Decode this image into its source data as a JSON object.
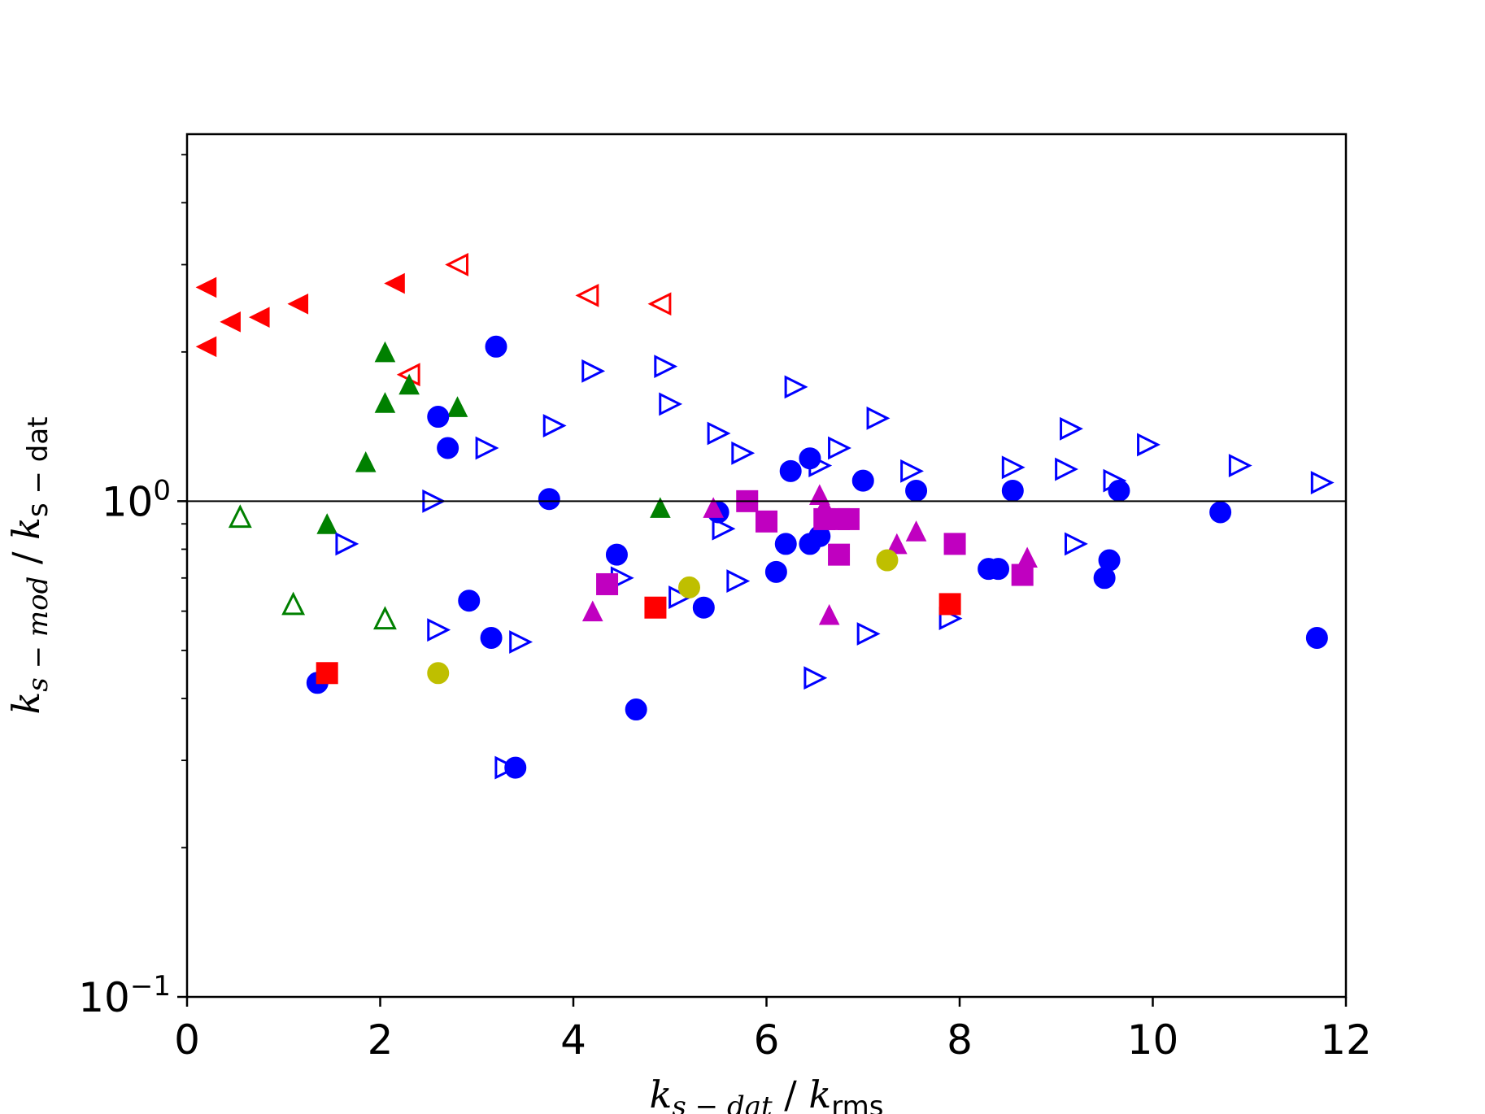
{
  "chart_data": {
    "type": "scatter",
    "title": "",
    "xlabel": {
      "parts": [
        {
          "text": "k",
          "style": "italic"
        },
        {
          "text": "s − dat",
          "style": "italic-sub"
        },
        {
          "text": " / ",
          "style": "normal"
        },
        {
          "text": "k",
          "style": "italic"
        },
        {
          "text": "rms",
          "style": "sub"
        }
      ]
    },
    "ylabel": {
      "parts": [
        {
          "text": "k",
          "style": "italic"
        },
        {
          "text": "s − mod",
          "style": "italic-sub"
        },
        {
          "text": " / ",
          "style": "normal"
        },
        {
          "text": "k",
          "style": "italic"
        },
        {
          "text": "s − dat",
          "style": "sub"
        }
      ]
    },
    "xlim": [
      0,
      12
    ],
    "ylim": [
      0.1,
      5.5
    ],
    "yscale": "log",
    "xticks": [
      {
        "value": 0,
        "label": "0"
      },
      {
        "value": 2,
        "label": "2"
      },
      {
        "value": 4,
        "label": "4"
      },
      {
        "value": 6,
        "label": "6"
      },
      {
        "value": 8,
        "label": "8"
      },
      {
        "value": 10,
        "label": "10"
      },
      {
        "value": 12,
        "label": "12"
      }
    ],
    "yticks": [
      {
        "value": 0.1,
        "base": "10",
        "exp": "−1"
      },
      {
        "value": 1,
        "base": "10",
        "exp": "0"
      }
    ],
    "reference_line": {
      "y": 1,
      "color": "#000000"
    },
    "grid": false,
    "legend": "none",
    "series": [
      {
        "marker": "triangle-left",
        "filled": true,
        "color": "#ff0000",
        "points": [
          [
            0.2,
            2.7
          ],
          [
            0.2,
            2.05
          ],
          [
            0.45,
            2.3
          ],
          [
            0.75,
            2.35
          ],
          [
            1.15,
            2.5
          ],
          [
            2.15,
            2.75
          ]
        ]
      },
      {
        "marker": "triangle-left",
        "filled": false,
        "color": "#ff0000",
        "points": [
          [
            2.8,
            3.0
          ],
          [
            4.15,
            2.6
          ],
          [
            4.9,
            2.5
          ],
          [
            2.3,
            1.8
          ]
        ]
      },
      {
        "marker": "triangle-up",
        "filled": true,
        "color": "#008000",
        "points": [
          [
            2.05,
            2.0
          ],
          [
            2.3,
            1.72
          ],
          [
            2.05,
            1.58
          ],
          [
            2.8,
            1.55
          ],
          [
            1.85,
            1.2
          ],
          [
            1.45,
            0.9
          ],
          [
            4.9,
            0.97
          ]
        ]
      },
      {
        "marker": "triangle-up",
        "filled": false,
        "color": "#008000",
        "points": [
          [
            0.55,
            0.93
          ],
          [
            1.1,
            0.62
          ],
          [
            2.05,
            0.58
          ]
        ]
      },
      {
        "marker": "circle",
        "filled": true,
        "color": "#0000ff",
        "points": [
          [
            3.2,
            2.05
          ],
          [
            2.6,
            1.48
          ],
          [
            2.7,
            1.28
          ],
          [
            3.75,
            1.01
          ],
          [
            1.35,
            0.43
          ],
          [
            2.92,
            0.63
          ],
          [
            3.15,
            0.53
          ],
          [
            3.4,
            0.29
          ],
          [
            4.45,
            0.78
          ],
          [
            4.65,
            0.38
          ],
          [
            5.35,
            0.61
          ],
          [
            5.5,
            0.95
          ],
          [
            6.1,
            0.72
          ],
          [
            6.2,
            0.82
          ],
          [
            6.25,
            1.15
          ],
          [
            6.45,
            1.22
          ],
          [
            6.45,
            0.82
          ],
          [
            6.55,
            0.85
          ],
          [
            7.0,
            1.1
          ],
          [
            7.55,
            1.05
          ],
          [
            8.3,
            0.73
          ],
          [
            8.4,
            0.73
          ],
          [
            8.55,
            1.05
          ],
          [
            9.5,
            0.7
          ],
          [
            9.55,
            0.76
          ],
          [
            9.65,
            1.05
          ],
          [
            10.7,
            0.95
          ],
          [
            11.7,
            0.53
          ]
        ]
      },
      {
        "marker": "triangle-right",
        "filled": false,
        "color": "#0000ff",
        "points": [
          [
            4.2,
            1.83
          ],
          [
            4.95,
            1.87
          ],
          [
            5.0,
            1.57
          ],
          [
            3.8,
            1.42
          ],
          [
            3.1,
            1.28
          ],
          [
            2.55,
            1.0
          ],
          [
            1.65,
            0.82
          ],
          [
            2.6,
            0.55
          ],
          [
            3.45,
            0.52
          ],
          [
            3.3,
            0.29
          ],
          [
            4.5,
            0.7
          ],
          [
            5.1,
            0.64
          ],
          [
            5.55,
            0.88
          ],
          [
            5.5,
            1.37
          ],
          [
            5.75,
            1.25
          ],
          [
            5.7,
            0.69
          ],
          [
            6.3,
            1.7
          ],
          [
            6.55,
            1.18
          ],
          [
            6.75,
            1.28
          ],
          [
            7.15,
            1.47
          ],
          [
            7.05,
            0.54
          ],
          [
            6.5,
            0.44
          ],
          [
            7.5,
            1.15
          ],
          [
            7.9,
            0.58
          ],
          [
            8.55,
            1.17
          ],
          [
            9.1,
            1.16
          ],
          [
            9.15,
            1.4
          ],
          [
            9.2,
            0.82
          ],
          [
            9.6,
            1.1
          ],
          [
            9.95,
            1.3
          ],
          [
            10.9,
            1.18
          ],
          [
            11.75,
            1.09
          ]
        ]
      },
      {
        "marker": "square",
        "filled": true,
        "color": "#ff0000",
        "points": [
          [
            1.45,
            0.45
          ],
          [
            4.85,
            0.61
          ],
          [
            7.9,
            0.62
          ]
        ]
      },
      {
        "marker": "square",
        "filled": true,
        "color": "#c000c0",
        "points": [
          [
            4.35,
            0.68
          ],
          [
            5.8,
            1.0
          ],
          [
            6.0,
            0.91
          ],
          [
            6.6,
            0.92
          ],
          [
            6.75,
            0.92
          ],
          [
            6.85,
            0.92
          ],
          [
            6.75,
            0.78
          ],
          [
            7.95,
            0.82
          ],
          [
            8.65,
            0.71
          ]
        ]
      },
      {
        "marker": "triangle-up",
        "filled": true,
        "color": "#c000c0",
        "points": [
          [
            4.2,
            0.6
          ],
          [
            5.45,
            0.97
          ],
          [
            6.55,
            1.03
          ],
          [
            6.6,
            0.98
          ],
          [
            6.65,
            0.59
          ],
          [
            7.35,
            0.82
          ],
          [
            7.55,
            0.87
          ],
          [
            8.7,
            0.77
          ]
        ]
      },
      {
        "marker": "circle",
        "filled": true,
        "color": "#bfbf00",
        "points": [
          [
            2.6,
            0.45
          ],
          [
            5.2,
            0.67
          ],
          [
            7.25,
            0.76
          ]
        ]
      }
    ]
  }
}
